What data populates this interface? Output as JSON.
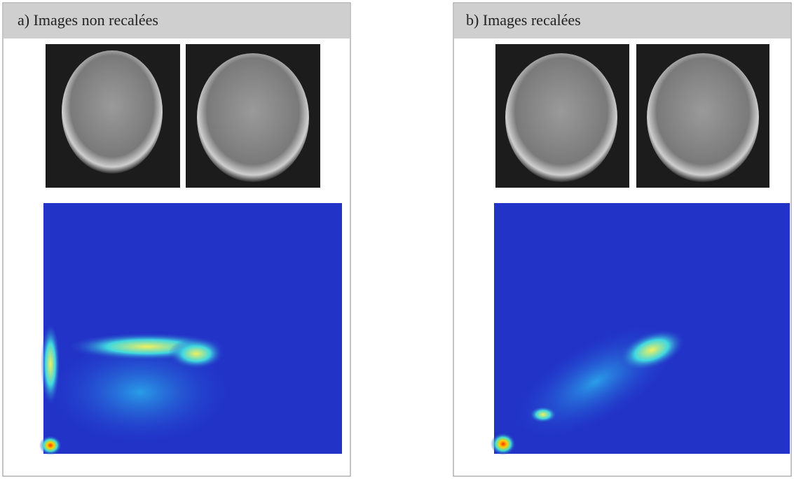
{
  "panels": [
    {
      "title": "a) Images non recalées"
    },
    {
      "title": "b) Images recalées"
    }
  ]
}
